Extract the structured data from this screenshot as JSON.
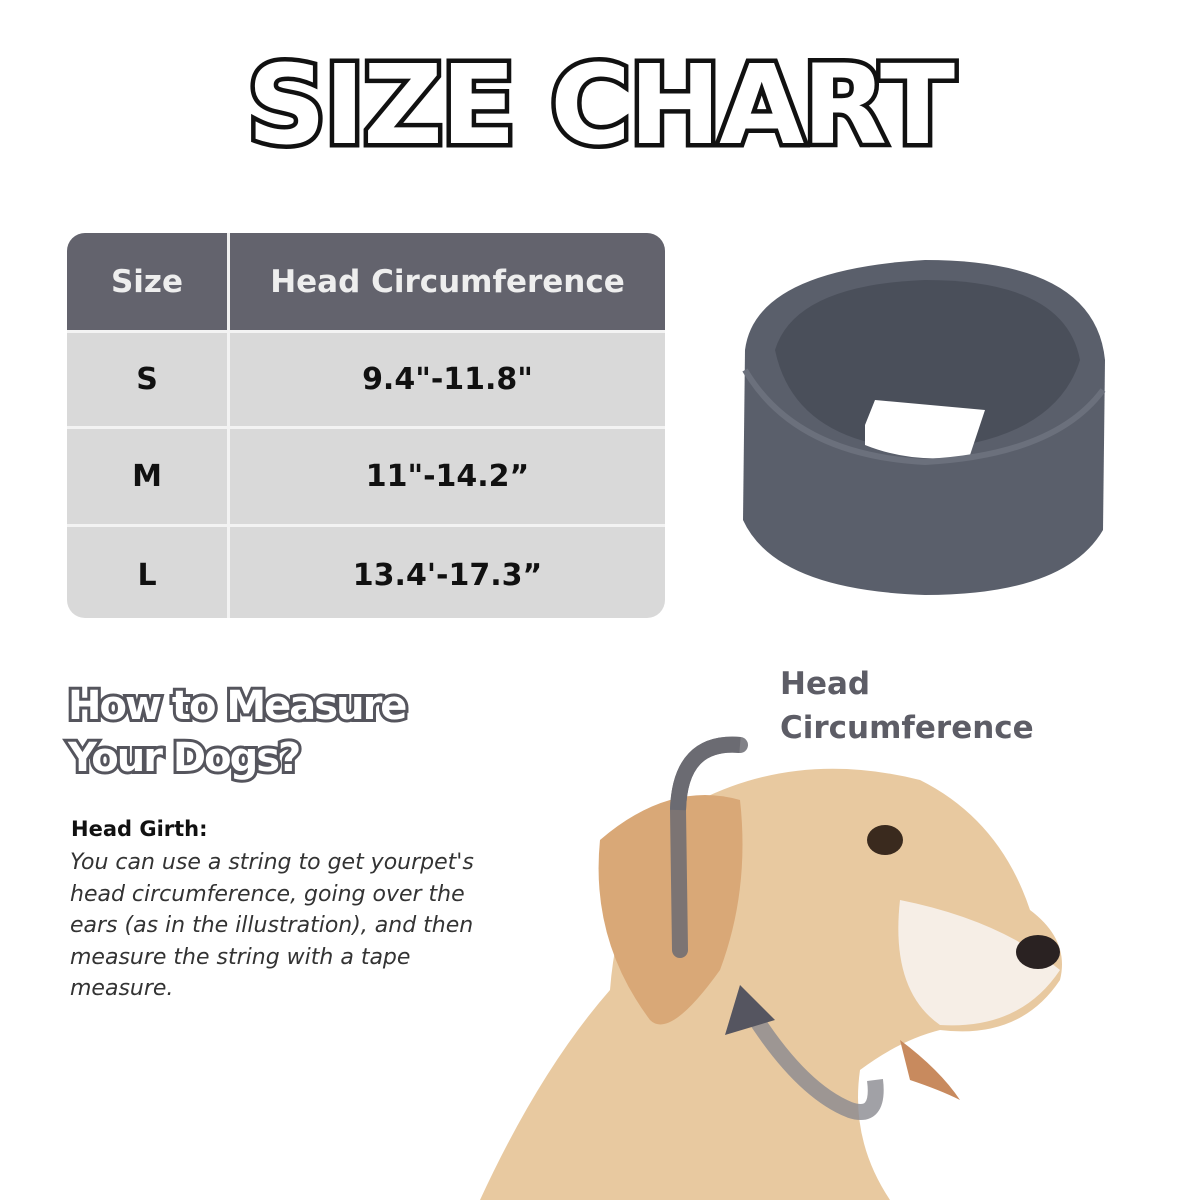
{
  "title": "SIZE CHART",
  "table": {
    "headers": [
      "Size",
      "Head Circumference"
    ],
    "rows": [
      {
        "size": "S",
        "range": "9.4\"-11.8\""
      },
      {
        "size": "M",
        "range": "11\"-14.2”"
      },
      {
        "size": "L",
        "range": "13.4'-17.3”"
      }
    ],
    "header_color": "#63636d",
    "row_color": "#d9d9d9"
  },
  "how_to": {
    "heading_line1": "How to Measure",
    "heading_line2": "Your Dogs?",
    "subheading": "Head Girth:",
    "body_lines": [
      "You can use a string to get yourpet's",
      "head circumference, going over the",
      "ears (as in the illustration), and then",
      "measure the string with a tape",
      "measure."
    ]
  },
  "annotation": {
    "line1": "Head",
    "line2": "Circumference"
  }
}
